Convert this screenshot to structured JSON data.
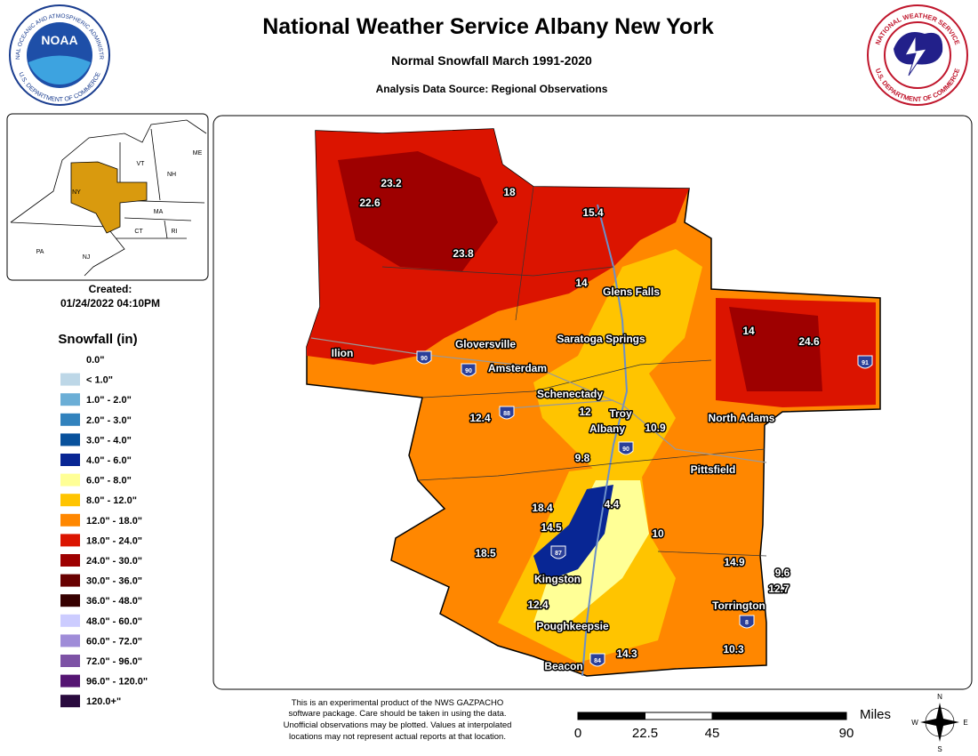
{
  "header": {
    "title": "National Weather Service Albany New York",
    "subtitle": "Normal Snowfall March 1991-2020",
    "source": "Analysis Data Source: Regional Observations"
  },
  "logos": {
    "noaa": "NOAA",
    "noaa_ring_top": "NATIONAL OCEANIC AND ATMOSPHERIC ADMINISTRATION",
    "noaa_ring_bottom": "U.S. DEPARTMENT OF COMMERCE",
    "nws_ring_top": "NATIONAL WEATHER SERVICE",
    "nws_ring_bottom": "U.S. DEPARTMENT OF COMMERCE"
  },
  "created": {
    "label": "Created:",
    "date": "01/24/2022 04:10PM"
  },
  "legend": {
    "title": "Snowfall (in)",
    "items": [
      {
        "label": "0.0\"",
        "color": "#ffffff"
      },
      {
        "label": "< 1.0\"",
        "color": "#bdd7e7"
      },
      {
        "label": "1.0\" - 2.0\"",
        "color": "#6baed6"
      },
      {
        "label": "2.0\" - 3.0\"",
        "color": "#3182bd"
      },
      {
        "label": "3.0\" - 4.0\"",
        "color": "#08519c"
      },
      {
        "label": "4.0\" - 6.0\"",
        "color": "#082694"
      },
      {
        "label": "6.0\" - 8.0\"",
        "color": "#ffff96"
      },
      {
        "label": "8.0\" - 12.0\"",
        "color": "#ffc400"
      },
      {
        "label": "12.0\" - 18.0\"",
        "color": "#ff8700"
      },
      {
        "label": "18.0\" - 24.0\"",
        "color": "#db1400"
      },
      {
        "label": "24.0\" - 30.0\"",
        "color": "#9e0000"
      },
      {
        "label": "30.0\" - 36.0\"",
        "color": "#690000"
      },
      {
        "label": "36.0\" - 48.0\"",
        "color": "#360000"
      },
      {
        "label": "48.0\" - 60.0\"",
        "color": "#ccccff"
      },
      {
        "label": "60.0\" - 72.0\"",
        "color": "#9f8cd8"
      },
      {
        "label": "72.0\" - 96.0\"",
        "color": "#7d52a5"
      },
      {
        "label": "96.0\" - 120.0\"",
        "color": "#551573"
      },
      {
        "label": "120.0+\"",
        "color": "#290a3e"
      }
    ]
  },
  "inset_labels": [
    "VT",
    "NH",
    "ME",
    "NY",
    "MA",
    "CT",
    "RI",
    "PA",
    "NJ"
  ],
  "cities": [
    "Ilion",
    "Gloversville",
    "Amsterdam",
    "Saratoga Springs",
    "Glens Falls",
    "Schenectady",
    "Troy",
    "Albany",
    "North Adams",
    "Pittsfield",
    "Kingston",
    "Poughkeepsie",
    "Beacon",
    "Torrington"
  ],
  "interstates": [
    "90",
    "90",
    "88",
    "90",
    "87",
    "84",
    "91",
    "8"
  ],
  "station_values": [
    23.2,
    22.6,
    18,
    15.4,
    23.8,
    14,
    14,
    24.6,
    12.4,
    12,
    10.9,
    9.8,
    18.4,
    4.4,
    14.5,
    18.5,
    10,
    14.9,
    9.6,
    12.7,
    12.4,
    14.3,
    10.3
  ],
  "disclaimer": [
    "This is an experimental product of the NWS GAZPACHO",
    "software package. Care should be taken in using the data.",
    "Unofficial observations may be plotted. Values at interpolated",
    "locations may not represent actual reports at that location."
  ],
  "scale": {
    "unit": "Miles",
    "ticks": [
      0,
      22.5,
      45,
      90
    ]
  },
  "compass": [
    "N",
    "E",
    "S",
    "W"
  ]
}
